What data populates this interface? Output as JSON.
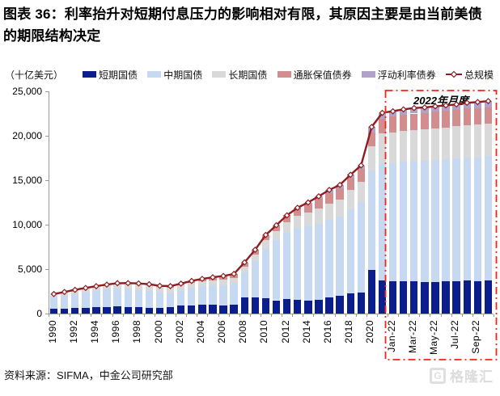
{
  "title": "图表 36：利率抬升对短期付息压力的影响相对有限，其原因主要是由当前美债的期限结构决定",
  "source": "资料来源：SIFMA，中金公司研究部",
  "watermark": {
    "glyph": "G",
    "text": "格隆汇"
  },
  "chart_data": {
    "type": "bar",
    "subtype": "stacked-bar-with-total-line",
    "unit": "（十亿美元）",
    "ylim": [
      0,
      25000
    ],
    "ytick_step": 5000,
    "ytick_labels": [
      "0",
      "5,000",
      "10,000",
      "15,000",
      "20,000",
      "25,000"
    ],
    "grid": false,
    "legend_position": "top",
    "categories": [
      "1990",
      "1991",
      "1992",
      "1993",
      "1994",
      "1995",
      "1996",
      "1997",
      "1998",
      "1999",
      "2000",
      "2001",
      "2002",
      "2003",
      "2004",
      "2005",
      "2006",
      "2007",
      "2008",
      "2009",
      "2010",
      "2011",
      "2012",
      "2013",
      "2014",
      "2015",
      "2016",
      "2017",
      "2018",
      "2019",
      "2020",
      "2021",
      "Jan-22",
      "Feb-22",
      "Mar-22",
      "Apr-22",
      "May-22",
      "Jun-22",
      "Jul-22",
      "Aug-22",
      "Sep-22",
      "Oct-22"
    ],
    "shown_ticks": [
      "1990",
      "1992",
      "1994",
      "1996",
      "1998",
      "2000",
      "2002",
      "2004",
      "2006",
      "2008",
      "2010",
      "2012",
      "2014",
      "2016",
      "2018",
      "2020",
      "Jan-22",
      "Mar-22",
      "May-22",
      "Jul-22",
      "Sep-22"
    ],
    "series": [
      {
        "name": "短期国债",
        "color": "#0c1e8e",
        "values": [
          530,
          570,
          630,
          660,
          700,
          760,
          780,
          720,
          690,
          650,
          620,
          750,
          890,
          940,
          960,
          960,
          940,
          1000,
          1860,
          1790,
          1770,
          1500,
          1630,
          1590,
          1460,
          1510,
          1820,
          1960,
          2240,
          2400,
          4950,
          3710,
          3660,
          3650,
          3620,
          3550,
          3570,
          3620,
          3630,
          3700,
          3620,
          3700
        ]
      },
      {
        "name": "中期国债",
        "color": "#c6d9f1",
        "values": [
          1270,
          1410,
          1560,
          1710,
          1840,
          1940,
          2060,
          2070,
          1990,
          1900,
          1730,
          1560,
          1700,
          1930,
          2100,
          2200,
          2280,
          2350,
          2790,
          4140,
          5570,
          6780,
          7490,
          8080,
          8370,
          8620,
          8710,
          8950,
          9520,
          10150,
          11130,
          13180,
          13280,
          13420,
          13540,
          13610,
          13680,
          13720,
          13790,
          13860,
          13950,
          13990
        ]
      },
      {
        "name": "长期国债",
        "color": "#d9d9d9",
        "values": [
          400,
          450,
          480,
          510,
          540,
          560,
          580,
          600,
          620,
          630,
          630,
          630,
          620,
          620,
          610,
          610,
          620,
          640,
          580,
          680,
          890,
          960,
          1120,
          1310,
          1530,
          1690,
          1830,
          1950,
          2110,
          2300,
          2750,
          3350,
          3430,
          3470,
          3500,
          3540,
          3570,
          3600,
          3630,
          3660,
          3690,
          3710
        ]
      },
      {
        "name": "通胀保值债券",
        "color": "#d28d8e",
        "values": [
          0,
          0,
          0,
          0,
          0,
          0,
          0,
          40,
          90,
          120,
          140,
          150,
          160,
          180,
          230,
          310,
          390,
          470,
          530,
          570,
          620,
          700,
          810,
          920,
          1030,
          1120,
          1210,
          1260,
          1370,
          1430,
          1550,
          1690,
          1770,
          1810,
          1840,
          1870,
          1880,
          1870,
          1860,
          1850,
          1830,
          1820
        ]
      },
      {
        "name": "浮动利率债券",
        "color": "#b2a1c8",
        "values": [
          0,
          0,
          0,
          0,
          0,
          0,
          0,
          0,
          0,
          0,
          0,
          0,
          0,
          0,
          0,
          0,
          0,
          0,
          0,
          0,
          0,
          0,
          0,
          0,
          110,
          250,
          340,
          350,
          370,
          390,
          610,
          650,
          620,
          620,
          620,
          620,
          610,
          610,
          620,
          640,
          700,
          680
        ]
      }
    ],
    "line": {
      "name": "总规模",
      "color": "#8e1c20",
      "values": [
        2200,
        2430,
        2670,
        2880,
        3080,
        3260,
        3420,
        3430,
        3390,
        3300,
        3120,
        3090,
        3370,
        3670,
        3900,
        4080,
        4230,
        4460,
        5760,
        7180,
        8850,
        9940,
        11050,
        11900,
        12500,
        13190,
        13910,
        14470,
        15610,
        16670,
        20990,
        22580,
        22760,
        22970,
        23120,
        23190,
        23310,
        23420,
        23530,
        23710,
        23790,
        23900
      ]
    },
    "annotation": {
      "label": "2022年月度",
      "color": "#ff2115",
      "from": "Jan-22",
      "to": "Oct-22"
    }
  }
}
